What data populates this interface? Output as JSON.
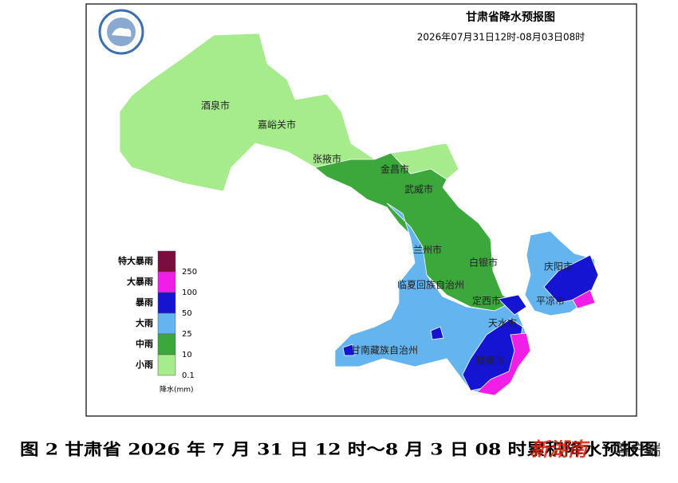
{
  "map": {
    "title": "甘肃省降水预报图",
    "subtitle": "2026年07月31日12时-08月03日08时",
    "cities": [
      "酒泉市",
      "嘉峪关市",
      "张掖市",
      "金昌市",
      "武威市",
      "兰州市",
      "白银市",
      "临夏回族自治州",
      "定西市",
      "庆阳市",
      "平凉市",
      "天水市",
      "甘南藏族自治州",
      "陇南市"
    ],
    "legend": {
      "items": [
        {
          "label": "特大暴雨",
          "color": "#7a0c40",
          "min": 250
        },
        {
          "label": "大暴雨",
          "color": "#f01ee6",
          "min": 100
        },
        {
          "label": "暴雨",
          "color": "#1414d2",
          "min": 50
        },
        {
          "label": "大雨",
          "color": "#64b4f0",
          "min": 25
        },
        {
          "label": "中雨",
          "color": "#3ca83c",
          "min": 10
        },
        {
          "label": "小雨",
          "color": "#a6ec8c",
          "min": 0.1
        }
      ],
      "unit": "降水(mm)"
    },
    "caption": "图 2 甘肃省 2026 年 7 月 31 日 12 时～8 月 3 日 08 时累积降水预报图",
    "watermark": [
      "新湖南",
      "客户端"
    ]
  }
}
